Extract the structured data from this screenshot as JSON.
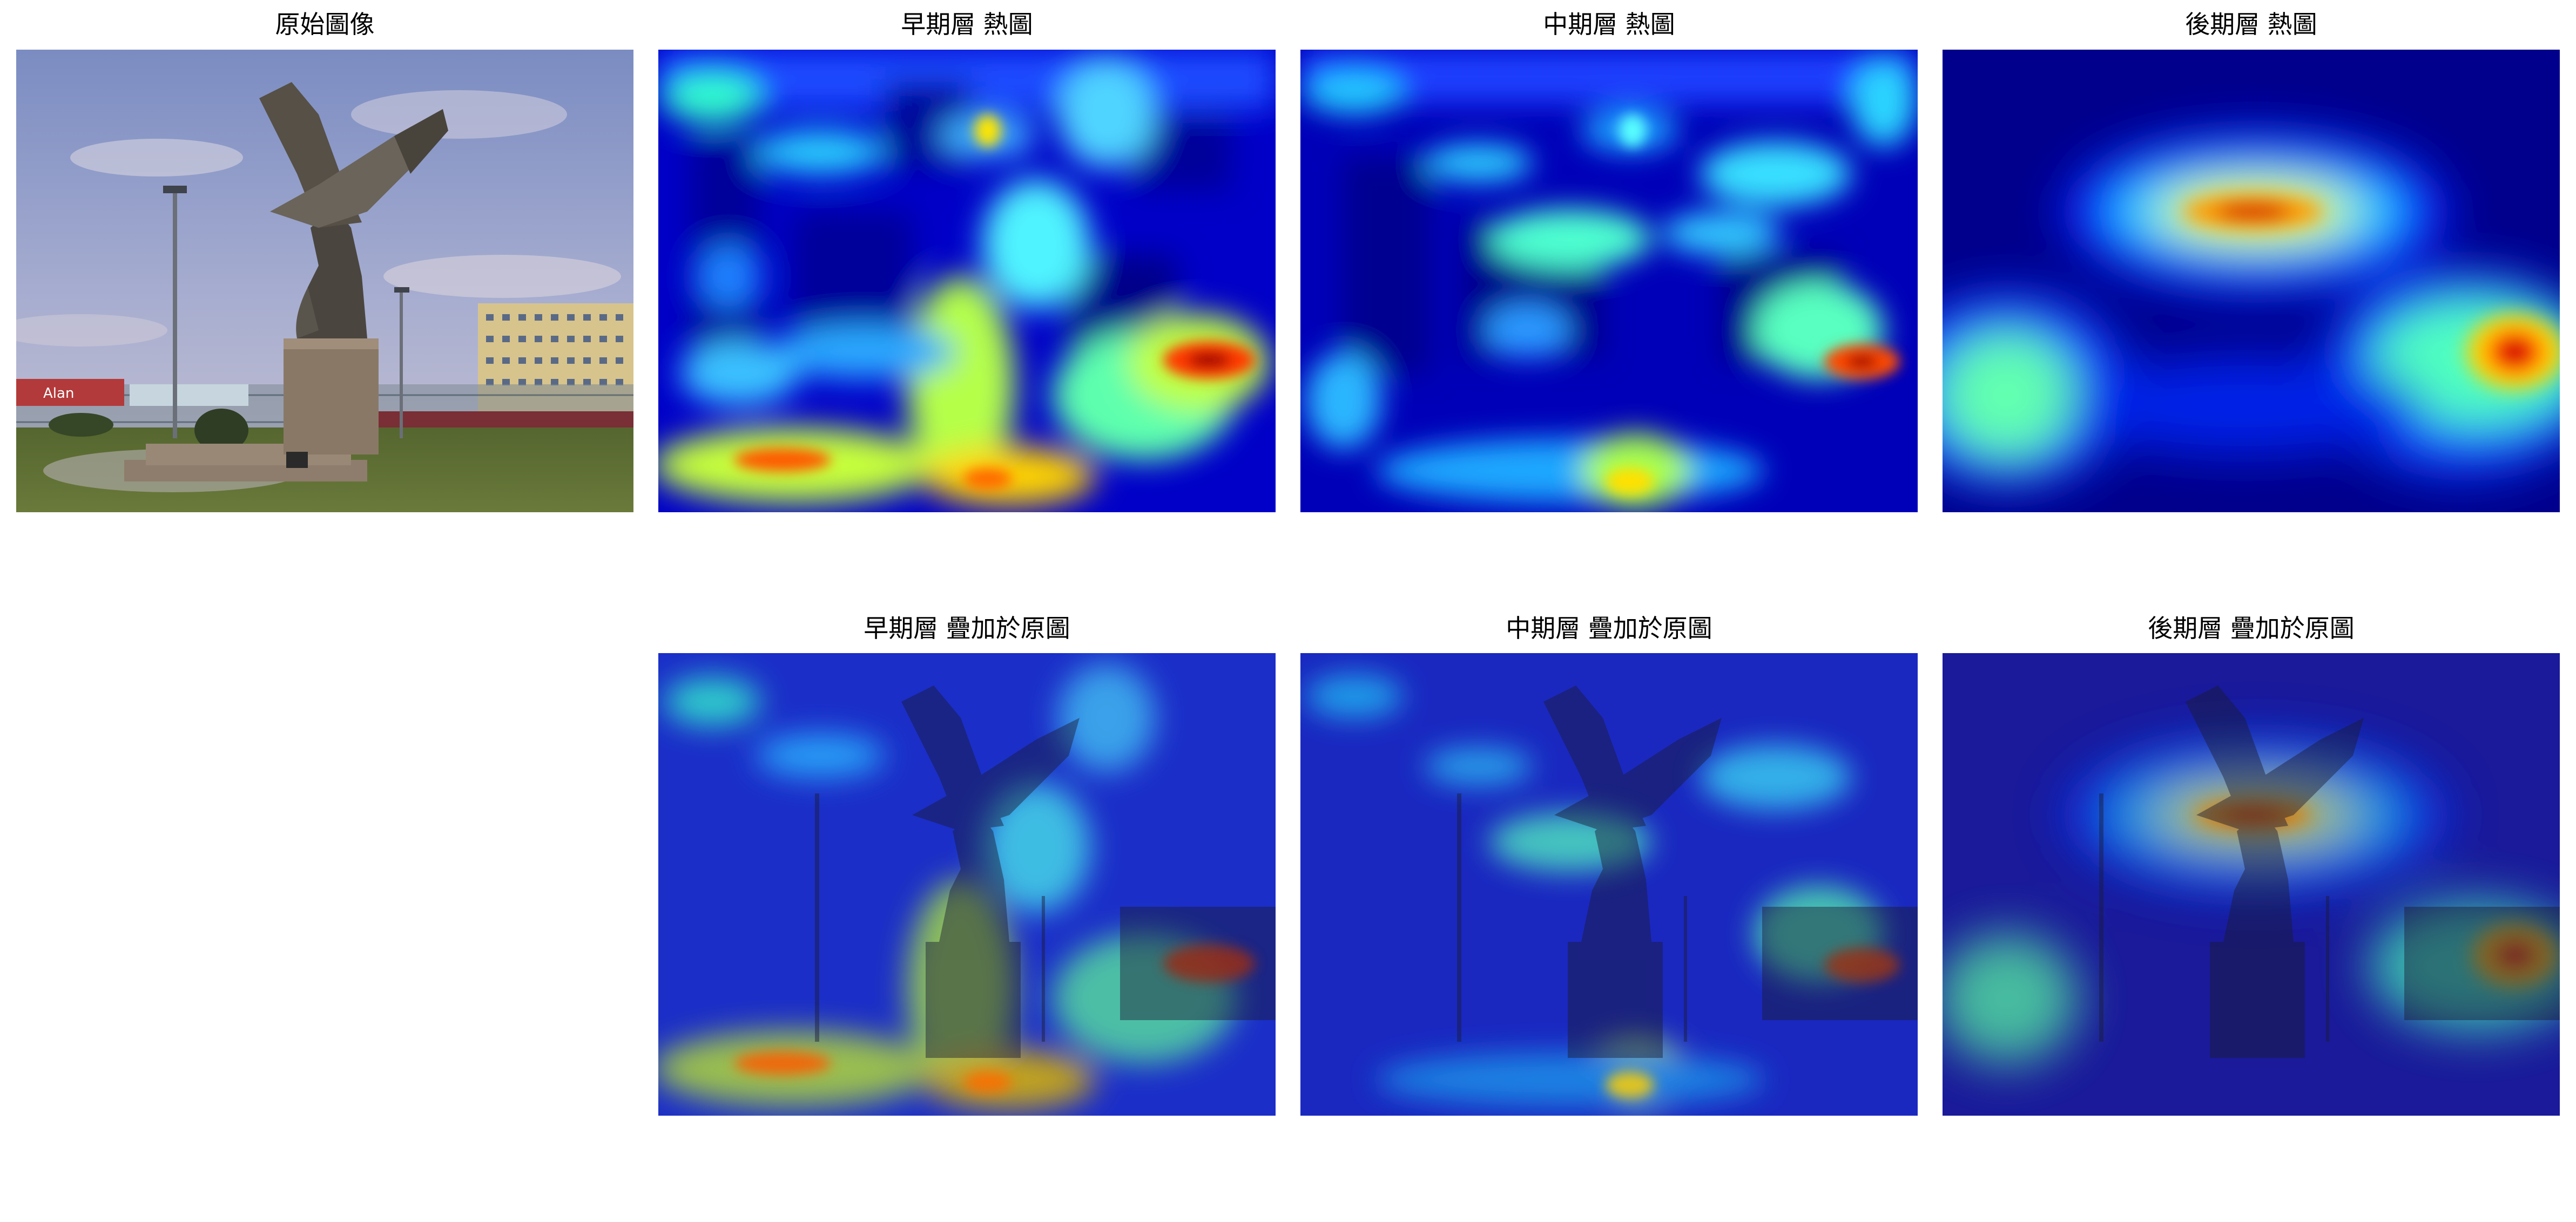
{
  "panels": {
    "original": {
      "title": "原始圖像"
    },
    "early_heatmap": {
      "title": "早期層 熱圖"
    },
    "mid_heatmap": {
      "title": "中期層 熱圖"
    },
    "late_heatmap": {
      "title": "後期層 熱圖"
    },
    "early_overlay": {
      "title": "早期層 疊加於原圖"
    },
    "mid_overlay": {
      "title": "中期層 疊加於原圖"
    },
    "late_overlay": {
      "title": "後期層 疊加於原圖"
    }
  },
  "photo_sign_text": "Alan",
  "colormap": "jet",
  "colors": {
    "jet_dark": "#00008f",
    "jet_blue": "#0000ff",
    "jet_cyan": "#00ffff",
    "jet_yellow": "#ffff00",
    "jet_red": "#ff0000",
    "jet_darkred": "#800000"
  }
}
